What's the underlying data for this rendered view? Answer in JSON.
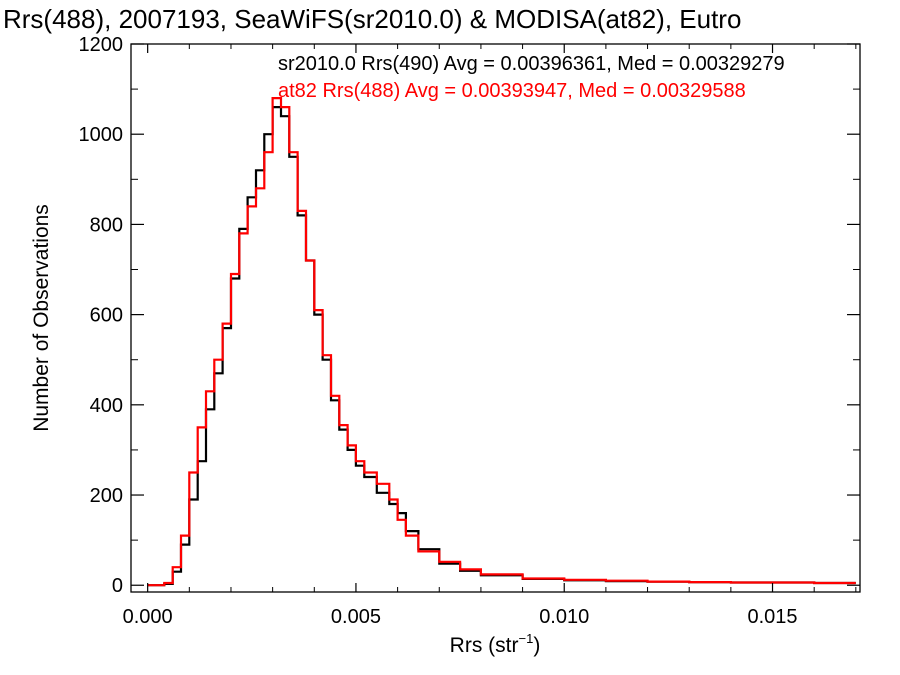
{
  "chart_data": {
    "type": "line",
    "title": "Rrs(488), 2007193, SeaWiFS(sr2010.0) & MODISA(at82), Eutro",
    "xlabel_main": "Rrs (str",
    "xlabel_sup": "−1",
    "xlabel_end": ")",
    "ylabel": "Number of Observations",
    "xlim": [
      -0.0004,
      0.0171
    ],
    "ylim": [
      -15,
      1200
    ],
    "xticks": [
      0.0,
      0.005,
      0.01,
      0.015
    ],
    "xtick_labels": [
      "0.000",
      "0.005",
      "0.010",
      "0.015"
    ],
    "yticks": [
      0,
      200,
      400,
      600,
      800,
      1000,
      1200
    ],
    "ytick_labels": [
      "0",
      "200",
      "400",
      "600",
      "800",
      "1000",
      "1200"
    ],
    "grid": false,
    "legend_position": "top",
    "series": [
      {
        "name": "sr2010.0 Rrs(490) Avg = 0.00396361, Med = 0.00329279",
        "color": "#000000",
        "points": [
          [
            0.0,
            0
          ],
          [
            0.0004,
            3
          ],
          [
            0.0006,
            30
          ],
          [
            0.0008,
            90
          ],
          [
            0.001,
            190
          ],
          [
            0.0012,
            275
          ],
          [
            0.0014,
            390
          ],
          [
            0.0016,
            470
          ],
          [
            0.0018,
            570
          ],
          [
            0.002,
            680
          ],
          [
            0.0022,
            790
          ],
          [
            0.0024,
            860
          ],
          [
            0.0026,
            920
          ],
          [
            0.0028,
            1000
          ],
          [
            0.003,
            1060
          ],
          [
            0.0032,
            1040
          ],
          [
            0.0034,
            950
          ],
          [
            0.0036,
            820
          ],
          [
            0.0038,
            720
          ],
          [
            0.004,
            600
          ],
          [
            0.0042,
            500
          ],
          [
            0.0044,
            410
          ],
          [
            0.0046,
            345
          ],
          [
            0.0048,
            300
          ],
          [
            0.005,
            265
          ],
          [
            0.0052,
            240
          ],
          [
            0.0055,
            205
          ],
          [
            0.0058,
            180
          ],
          [
            0.006,
            160
          ],
          [
            0.0062,
            120
          ],
          [
            0.0065,
            80
          ],
          [
            0.007,
            48
          ],
          [
            0.0075,
            32
          ],
          [
            0.008,
            22
          ],
          [
            0.009,
            14
          ],
          [
            0.01,
            11
          ],
          [
            0.011,
            9
          ],
          [
            0.012,
            8
          ],
          [
            0.013,
            7
          ],
          [
            0.014,
            6
          ],
          [
            0.015,
            6
          ],
          [
            0.016,
            5
          ],
          [
            0.017,
            5
          ]
        ]
      },
      {
        "name": "at82 Rrs(488) Avg = 0.00393947, Med = 0.00329588",
        "color": "#ff0000",
        "points": [
          [
            0.0,
            0
          ],
          [
            0.0004,
            5
          ],
          [
            0.0006,
            40
          ],
          [
            0.0008,
            110
          ],
          [
            0.001,
            250
          ],
          [
            0.0012,
            350
          ],
          [
            0.0014,
            430
          ],
          [
            0.0016,
            500
          ],
          [
            0.0018,
            580
          ],
          [
            0.002,
            690
          ],
          [
            0.0022,
            780
          ],
          [
            0.0024,
            840
          ],
          [
            0.0026,
            880
          ],
          [
            0.0028,
            960
          ],
          [
            0.003,
            1080
          ],
          [
            0.0032,
            1060
          ],
          [
            0.0034,
            960
          ],
          [
            0.0036,
            830
          ],
          [
            0.0038,
            720
          ],
          [
            0.004,
            610
          ],
          [
            0.0042,
            510
          ],
          [
            0.0044,
            420
          ],
          [
            0.0046,
            355
          ],
          [
            0.0048,
            310
          ],
          [
            0.005,
            275
          ],
          [
            0.0052,
            250
          ],
          [
            0.0055,
            225
          ],
          [
            0.0058,
            190
          ],
          [
            0.006,
            145
          ],
          [
            0.0062,
            110
          ],
          [
            0.0065,
            75
          ],
          [
            0.007,
            52
          ],
          [
            0.0075,
            35
          ],
          [
            0.008,
            24
          ],
          [
            0.009,
            15
          ],
          [
            0.01,
            12
          ],
          [
            0.011,
            10
          ],
          [
            0.012,
            8
          ],
          [
            0.013,
            7
          ],
          [
            0.014,
            6
          ],
          [
            0.015,
            6
          ],
          [
            0.016,
            5
          ],
          [
            0.017,
            5
          ]
        ]
      }
    ]
  }
}
